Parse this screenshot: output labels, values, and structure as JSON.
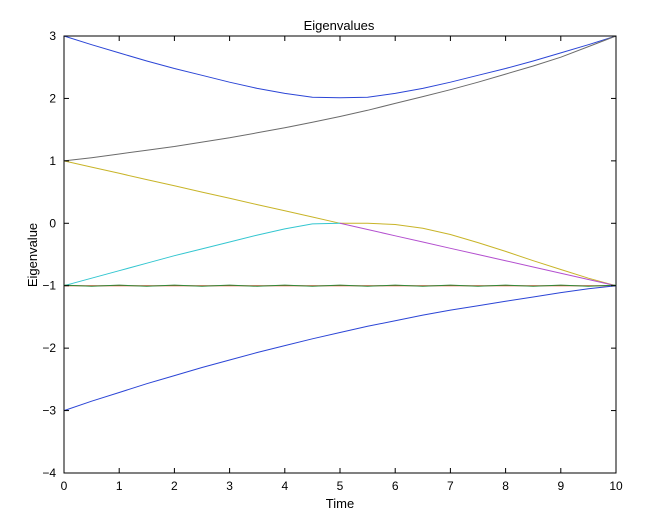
{
  "chart_data": {
    "type": "line",
    "title": "Eigenvalues",
    "xlabel": "Time",
    "ylabel": "Eigenvalue",
    "xlim": [
      0,
      10
    ],
    "ylim": [
      -4,
      3
    ],
    "xticks": [
      0,
      1,
      2,
      3,
      4,
      5,
      6,
      7,
      8,
      9,
      10
    ],
    "yticks": [
      -4,
      -3,
      -2,
      -1,
      0,
      1,
      2,
      3
    ],
    "grid": false,
    "legend": "none",
    "x": [
      0,
      0.5,
      1,
      1.5,
      2,
      2.5,
      3,
      3.5,
      4,
      4.5,
      5,
      5.5,
      6,
      6.5,
      7,
      7.5,
      8,
      8.5,
      9,
      9.5,
      10
    ],
    "series": [
      {
        "color": "#2b45d6",
        "values": [
          3.0,
          2.86,
          2.73,
          2.6,
          2.48,
          2.37,
          2.26,
          2.16,
          2.08,
          2.02,
          2.01,
          2.02,
          2.08,
          2.16,
          2.26,
          2.37,
          2.48,
          2.6,
          2.73,
          2.86,
          3.0
        ]
      },
      {
        "color": "#6b6b6b",
        "values": [
          1.0,
          1.05,
          1.11,
          1.17,
          1.23,
          1.3,
          1.37,
          1.45,
          1.53,
          1.62,
          1.71,
          1.81,
          1.92,
          2.03,
          2.14,
          2.26,
          2.39,
          2.52,
          2.66,
          2.83,
          3.0
        ]
      },
      {
        "color": "#c8b428",
        "values": [
          1.0,
          0.9,
          0.8,
          0.7,
          0.6,
          0.5,
          0.4,
          0.3,
          0.2,
          0.1,
          0.0,
          0.0,
          -0.02,
          -0.08,
          -0.18,
          -0.31,
          -0.45,
          -0.6,
          -0.74,
          -0.88,
          -1.0
        ]
      },
      {
        "color": "#b34fcf",
        "values": [
          null,
          null,
          null,
          null,
          null,
          null,
          null,
          null,
          null,
          null,
          0.0,
          -0.1,
          -0.2,
          -0.3,
          -0.4,
          -0.5,
          -0.6,
          -0.7,
          -0.8,
          -0.9,
          -1.0
        ]
      },
      {
        "color": "#33c6d0",
        "values": [
          -1.0,
          -0.88,
          -0.76,
          -0.64,
          -0.52,
          -0.41,
          -0.3,
          -0.19,
          -0.09,
          -0.01,
          0.0,
          null,
          null,
          null,
          null,
          null,
          null,
          null,
          null,
          null,
          null
        ]
      },
      {
        "color": "#e23a1e",
        "values": [
          -1.0,
          -1.0,
          -1.0,
          -1.0,
          -1.0,
          -1.0,
          -1.0,
          -1.0,
          -1.0,
          -1.0,
          -1.0,
          -1.0,
          -1.0,
          -1.0,
          -1.0,
          -1.0,
          -1.0,
          -1.0,
          -1.0,
          -1.0,
          -1.0
        ]
      },
      {
        "color": "#2e8b3a",
        "values": [
          -0.99,
          -1.01,
          -0.99,
          -1.01,
          -0.99,
          -1.01,
          -0.99,
          -1.01,
          -0.99,
          -1.01,
          -0.99,
          -1.01,
          -0.99,
          -1.01,
          -0.99,
          -1.01,
          -0.99,
          -1.01,
          -0.99,
          -1.01,
          -0.99
        ]
      },
      {
        "color": "#2b45d6",
        "values": [
          -3.0,
          -2.85,
          -2.71,
          -2.57,
          -2.44,
          -2.31,
          -2.19,
          -2.07,
          -1.96,
          -1.85,
          -1.75,
          -1.65,
          -1.56,
          -1.47,
          -1.39,
          -1.32,
          -1.25,
          -1.18,
          -1.11,
          -1.05,
          -1.0
        ]
      }
    ]
  }
}
